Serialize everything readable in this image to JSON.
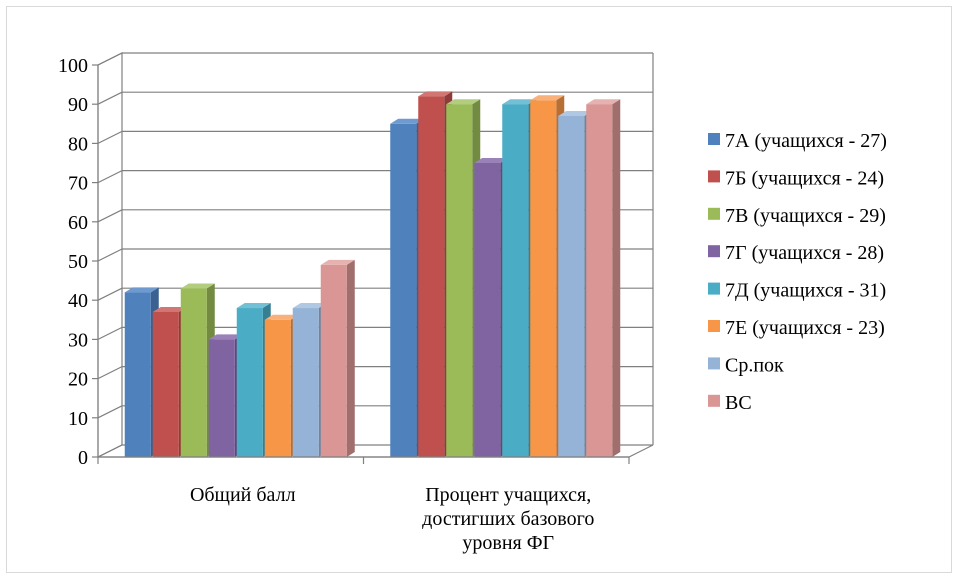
{
  "chart_data": {
    "type": "bar",
    "style": "3d-clustered-column",
    "categories": [
      [
        "Общий балл"
      ],
      [
        "Процент учащихся,",
        "достигших базового",
        "уровня ФГ"
      ]
    ],
    "series": [
      {
        "name": "7А (учащихся - 27)",
        "values": [
          42,
          85
        ],
        "color": "#4f81bd",
        "side": "#3a6190",
        "top": "#6e9ad0"
      },
      {
        "name": "7Б (учащихся - 24)",
        "values": [
          37,
          92
        ],
        "color": "#c0504d",
        "side": "#8e3b39",
        "top": "#d27674"
      },
      {
        "name": "7В (учащихся - 29)",
        "values": [
          43,
          90
        ],
        "color": "#9bbb59",
        "side": "#728b41",
        "top": "#b2cd7e"
      },
      {
        "name": "7Г (учащихся - 28)",
        "values": [
          30,
          75
        ],
        "color": "#8064a2",
        "side": "#5e4a78",
        "top": "#9a82b8"
      },
      {
        "name": "7Д (учащихся - 31)",
        "values": [
          38,
          90
        ],
        "color": "#4bacc6",
        "side": "#367f93",
        "top": "#72c0d5"
      },
      {
        "name": "7Е (учащихся - 23)",
        "values": [
          35,
          91
        ],
        "color": "#f79646",
        "side": "#b76f33",
        "top": "#f9b07a"
      },
      {
        "name": "Ср.пок",
        "values": [
          38,
          87
        ],
        "color": "#95b3d7",
        "side": "#6e85a0",
        "top": "#b1c8e3"
      },
      {
        "name": "ВС",
        "values": [
          49,
          90
        ],
        "color": "#d99694",
        "side": "#a06e6d",
        "top": "#e6b2b0"
      }
    ],
    "ylim": [
      0,
      100
    ],
    "yticks": [
      0,
      10,
      20,
      30,
      40,
      50,
      60,
      70,
      80,
      90,
      100
    ],
    "grid": true,
    "legend": "right"
  }
}
